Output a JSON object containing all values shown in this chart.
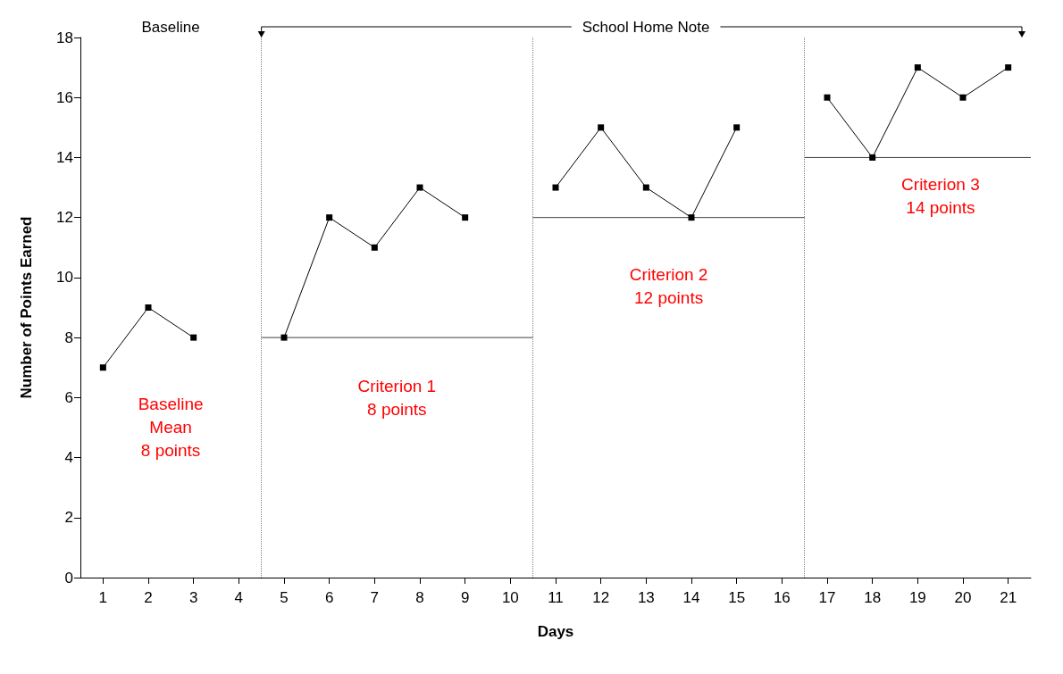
{
  "chart_data": {
    "type": "line",
    "xlabel": "Days",
    "ylabel": "Number of Points Earned",
    "xlim": [
      0.5,
      21.5
    ],
    "xticks": [
      1,
      2,
      3,
      4,
      5,
      6,
      7,
      8,
      9,
      10,
      11,
      12,
      13,
      14,
      15,
      16,
      17,
      18,
      19,
      20,
      21
    ],
    "ylim": [
      0,
      18
    ],
    "yticks": [
      0,
      2,
      4,
      6,
      8,
      10,
      12,
      14,
      16,
      18
    ],
    "grid": false,
    "marker": "square",
    "series": [
      {
        "color": "#000000",
        "x": [
          1,
          2,
          3
        ],
        "values": [
          7,
          9,
          8
        ]
      },
      {
        "color": "#000000",
        "x": [
          5,
          6,
          7,
          8,
          9
        ],
        "values": [
          8,
          12,
          11,
          13,
          12
        ]
      },
      {
        "color": "#000000",
        "x": [
          11,
          12,
          13,
          14,
          15
        ],
        "values": [
          13,
          15,
          13,
          12,
          15
        ]
      },
      {
        "color": "#000000",
        "x": [
          17,
          18,
          19,
          20,
          21
        ],
        "values": [
          16,
          14,
          17,
          16,
          17
        ]
      },
      {
        "color": "#404040",
        "marker": "none",
        "x": [
          4.5,
          10.5
        ],
        "values": [
          8,
          8
        ]
      },
      {
        "color": "#404040",
        "marker": "none",
        "x": [
          10.5,
          16.5
        ],
        "values": [
          12,
          12
        ]
      },
      {
        "color": "#404040",
        "marker": "none",
        "x": [
          16.5,
          21.5
        ],
        "values": [
          14,
          14
        ]
      }
    ],
    "ref_lines": [
      {
        "axis": "x",
        "value": 4.5,
        "color": "#808080",
        "line_style": "dotted"
      },
      {
        "axis": "x",
        "value": 10.5,
        "color": "#808080",
        "line_style": "dotted"
      },
      {
        "axis": "x",
        "value": 16.5,
        "color": "#808080",
        "line_style": "dotted"
      }
    ],
    "annotations": [
      "Baseline",
      "School Home Note",
      "Baseline\nMean\n8 points",
      "Criterion 1\n8 points",
      "Criterion 2\n12 points",
      "Criterion 3\n14 points"
    ]
  }
}
